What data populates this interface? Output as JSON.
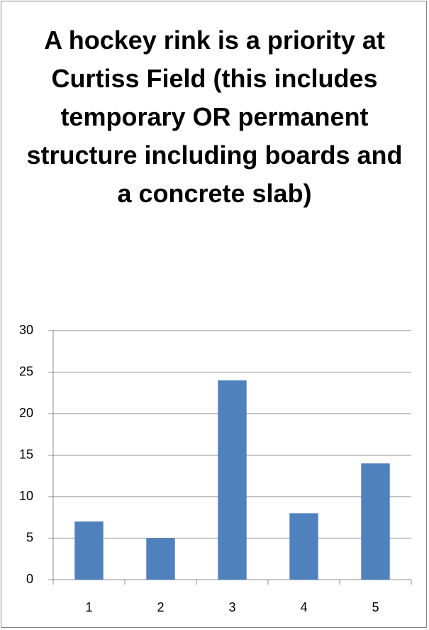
{
  "chart_data": {
    "type": "bar",
    "title": "A hockey rink is a priority at Curtiss Field (this includes temporary OR permanent structure including boards and a concrete slab)",
    "categories": [
      "1",
      "2",
      "3",
      "4",
      "5"
    ],
    "values": [
      7,
      5,
      24,
      8,
      14
    ],
    "color": "#4f81bd",
    "ylim": [
      0,
      30
    ],
    "yticks": [
      0,
      5,
      10,
      15,
      20,
      25,
      30
    ],
    "grid": true
  }
}
